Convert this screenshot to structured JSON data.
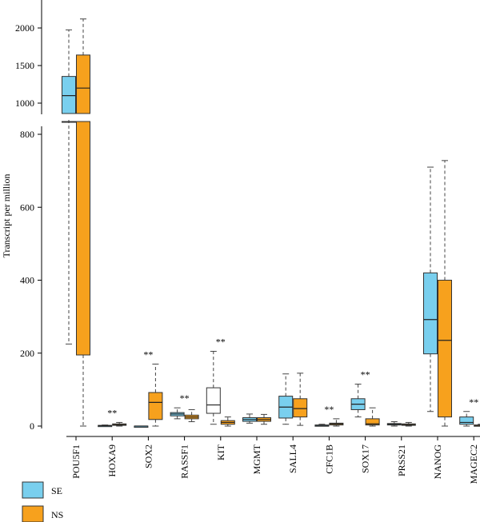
{
  "chart_data": {
    "type": "boxplot",
    "ylabel": "Transcript per million",
    "y_axis_break": {
      "lower_range": [
        0,
        800
      ],
      "upper_range": [
        1000,
        2000
      ]
    },
    "lower_ticks": [
      0,
      200,
      400,
      600,
      800
    ],
    "upper_ticks": [
      1000,
      1500,
      2000
    ],
    "categories": [
      "POU5F1",
      "HOXA9",
      "SOX2",
      "RASSF1",
      "KIT",
      "MGMT",
      "SALL4",
      "CFC1B",
      "SOX17",
      "PRSS21",
      "NANOG",
      "MAGEC2"
    ],
    "series": [
      {
        "name": "SE",
        "color": "#79cfee",
        "boxes": [
          {
            "min": 225,
            "q1": 950,
            "median": 1100,
            "q3": 1355,
            "max": 1975
          },
          {
            "min": 0,
            "q1": 0,
            "median": 1,
            "q3": 2,
            "max": 3
          },
          {
            "min": 0,
            "q1": 0,
            "median": 0,
            "q3": 0,
            "max": 0
          },
          {
            "min": 20,
            "q1": 28,
            "median": 33,
            "q3": 37,
            "max": 50
          },
          {
            "min": 5,
            "q1": 35,
            "median": 58,
            "q3": 105,
            "max": 205
          },
          {
            "min": 8,
            "q1": 13,
            "median": 18,
            "q3": 23,
            "max": 33
          },
          {
            "min": 5,
            "q1": 22,
            "median": 52,
            "q3": 82,
            "max": 143
          },
          {
            "min": 0,
            "q1": 1,
            "median": 2,
            "q3": 3,
            "max": 5
          },
          {
            "min": 25,
            "q1": 45,
            "median": 60,
            "q3": 75,
            "max": 115
          },
          {
            "min": 0,
            "q1": 3,
            "median": 5,
            "q3": 7,
            "max": 12
          },
          {
            "min": 40,
            "q1": 198,
            "median": 292,
            "q3": 420,
            "max": 710
          },
          {
            "min": 0,
            "q1": 5,
            "median": 10,
            "q3": 25,
            "max": 40
          }
        ]
      },
      {
        "name": "NS",
        "color": "#f7a11d",
        "boxes": [
          {
            "min": 0,
            "q1": 195,
            "median": 1200,
            "q3": 1640,
            "max": 2120
          },
          {
            "min": 0,
            "q1": 2,
            "median": 4,
            "q3": 6,
            "max": 10
          },
          {
            "min": 0,
            "q1": 18,
            "median": 65,
            "q3": 92,
            "max": 170
          },
          {
            "min": 12,
            "q1": 20,
            "median": 25,
            "q3": 30,
            "max": 45
          },
          {
            "min": 0,
            "q1": 5,
            "median": 10,
            "q3": 15,
            "max": 25
          },
          {
            "min": 5,
            "q1": 13,
            "median": 18,
            "q3": 23,
            "max": 32
          },
          {
            "min": 2,
            "q1": 25,
            "median": 48,
            "q3": 75,
            "max": 145
          },
          {
            "min": 0,
            "q1": 3,
            "median": 6,
            "q3": 8,
            "max": 20
          },
          {
            "min": 0,
            "q1": 3,
            "median": 6,
            "q3": 20,
            "max": 50
          },
          {
            "min": 0,
            "q1": 2,
            "median": 4,
            "q3": 6,
            "max": 10
          },
          {
            "min": 0,
            "q1": 25,
            "median": 235,
            "q3": 400,
            "max": 728
          },
          {
            "min": 0,
            "q1": 1,
            "median": 2,
            "q3": 3,
            "max": 5
          }
        ]
      }
    ],
    "outline_box": {
      "category": "KIT",
      "series": "SE",
      "fill": "#ffffff"
    },
    "significance": [
      {
        "category": "HOXA9",
        "label": "**"
      },
      {
        "category": "SOX2",
        "label": "**"
      },
      {
        "category": "RASSF1",
        "label": "**"
      },
      {
        "category": "KIT",
        "label": "**"
      },
      {
        "category": "CFC1B",
        "label": "**"
      },
      {
        "category": "SOX17",
        "label": "**"
      },
      {
        "category": "MAGEC2",
        "label": "**"
      }
    ],
    "legend": {
      "position": "bottom-left",
      "entries": [
        "SE",
        "NS"
      ]
    }
  }
}
